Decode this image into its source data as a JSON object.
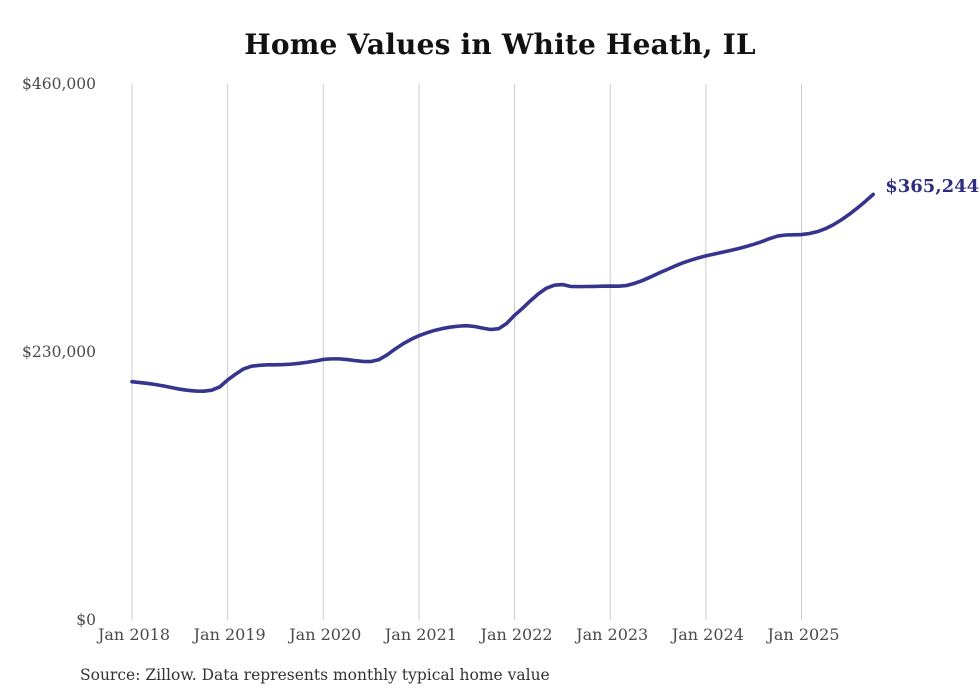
{
  "chart_data": {
    "type": "line",
    "title": "Home Values in White Heath, IL",
    "source_note": "Source: Zillow. Data represents monthly typical home value",
    "end_label": "$365,244",
    "end_value": 365244,
    "interval": "monthly",
    "x_start": "Jan 2018",
    "x_end": "Oct 2025",
    "ylim": [
      0,
      460000
    ],
    "grid": "vertical-only",
    "legend": "none",
    "y_ticks": [
      {
        "label": "$460,000",
        "value": 460000
      },
      {
        "label": "$230,000",
        "value": 230000
      },
      {
        "label": "$0",
        "value": 0
      }
    ],
    "x_ticks": [
      {
        "label": "Jan 2018",
        "month_index": 0
      },
      {
        "label": "Jan 2019",
        "month_index": 12
      },
      {
        "label": "Jan 2020",
        "month_index": 24
      },
      {
        "label": "Jan 2021",
        "month_index": 36
      },
      {
        "label": "Jan 2022",
        "month_index": 48
      },
      {
        "label": "Jan 2023",
        "month_index": 60
      },
      {
        "label": "Jan 2024",
        "month_index": 72
      },
      {
        "label": "Jan 2025",
        "month_index": 84
      }
    ],
    "series": [
      {
        "name": "Typical home value",
        "start_month": "2018-01",
        "values": [
          204500,
          203800,
          203000,
          202000,
          200800,
          199400,
          198100,
          197100,
          196500,
          196400,
          197200,
          200000,
          206000,
          211000,
          215500,
          217800,
          218600,
          219000,
          219000,
          219200,
          219600,
          220300,
          221200,
          222300,
          223600,
          224100,
          224100,
          223500,
          222600,
          221900,
          221800,
          223500,
          227500,
          232500,
          237000,
          240800,
          244000,
          246500,
          248600,
          250200,
          251400,
          252200,
          252600,
          251900,
          250500,
          249300,
          250000,
          254500,
          261500,
          267500,
          274000,
          280000,
          284800,
          287300,
          287900,
          286300,
          286100,
          286200,
          286300,
          286500,
          286600,
          286500,
          287000,
          288800,
          291200,
          294200,
          297400,
          300400,
          303400,
          306200,
          308600,
          310700,
          312500,
          314000,
          315500,
          317000,
          318600,
          320400,
          322400,
          324700,
          327300,
          329500,
          330400,
          330600,
          330800,
          331700,
          333300,
          335800,
          339200,
          343400,
          348200,
          353500,
          359200,
          365244
        ]
      }
    ],
    "colors": {
      "line": "#37348e",
      "end_label": "#2f2d82",
      "grid": "#cbcbcb",
      "axis_text": "#4a4a4a",
      "title_text": "#111111",
      "source_text": "#333333"
    }
  }
}
